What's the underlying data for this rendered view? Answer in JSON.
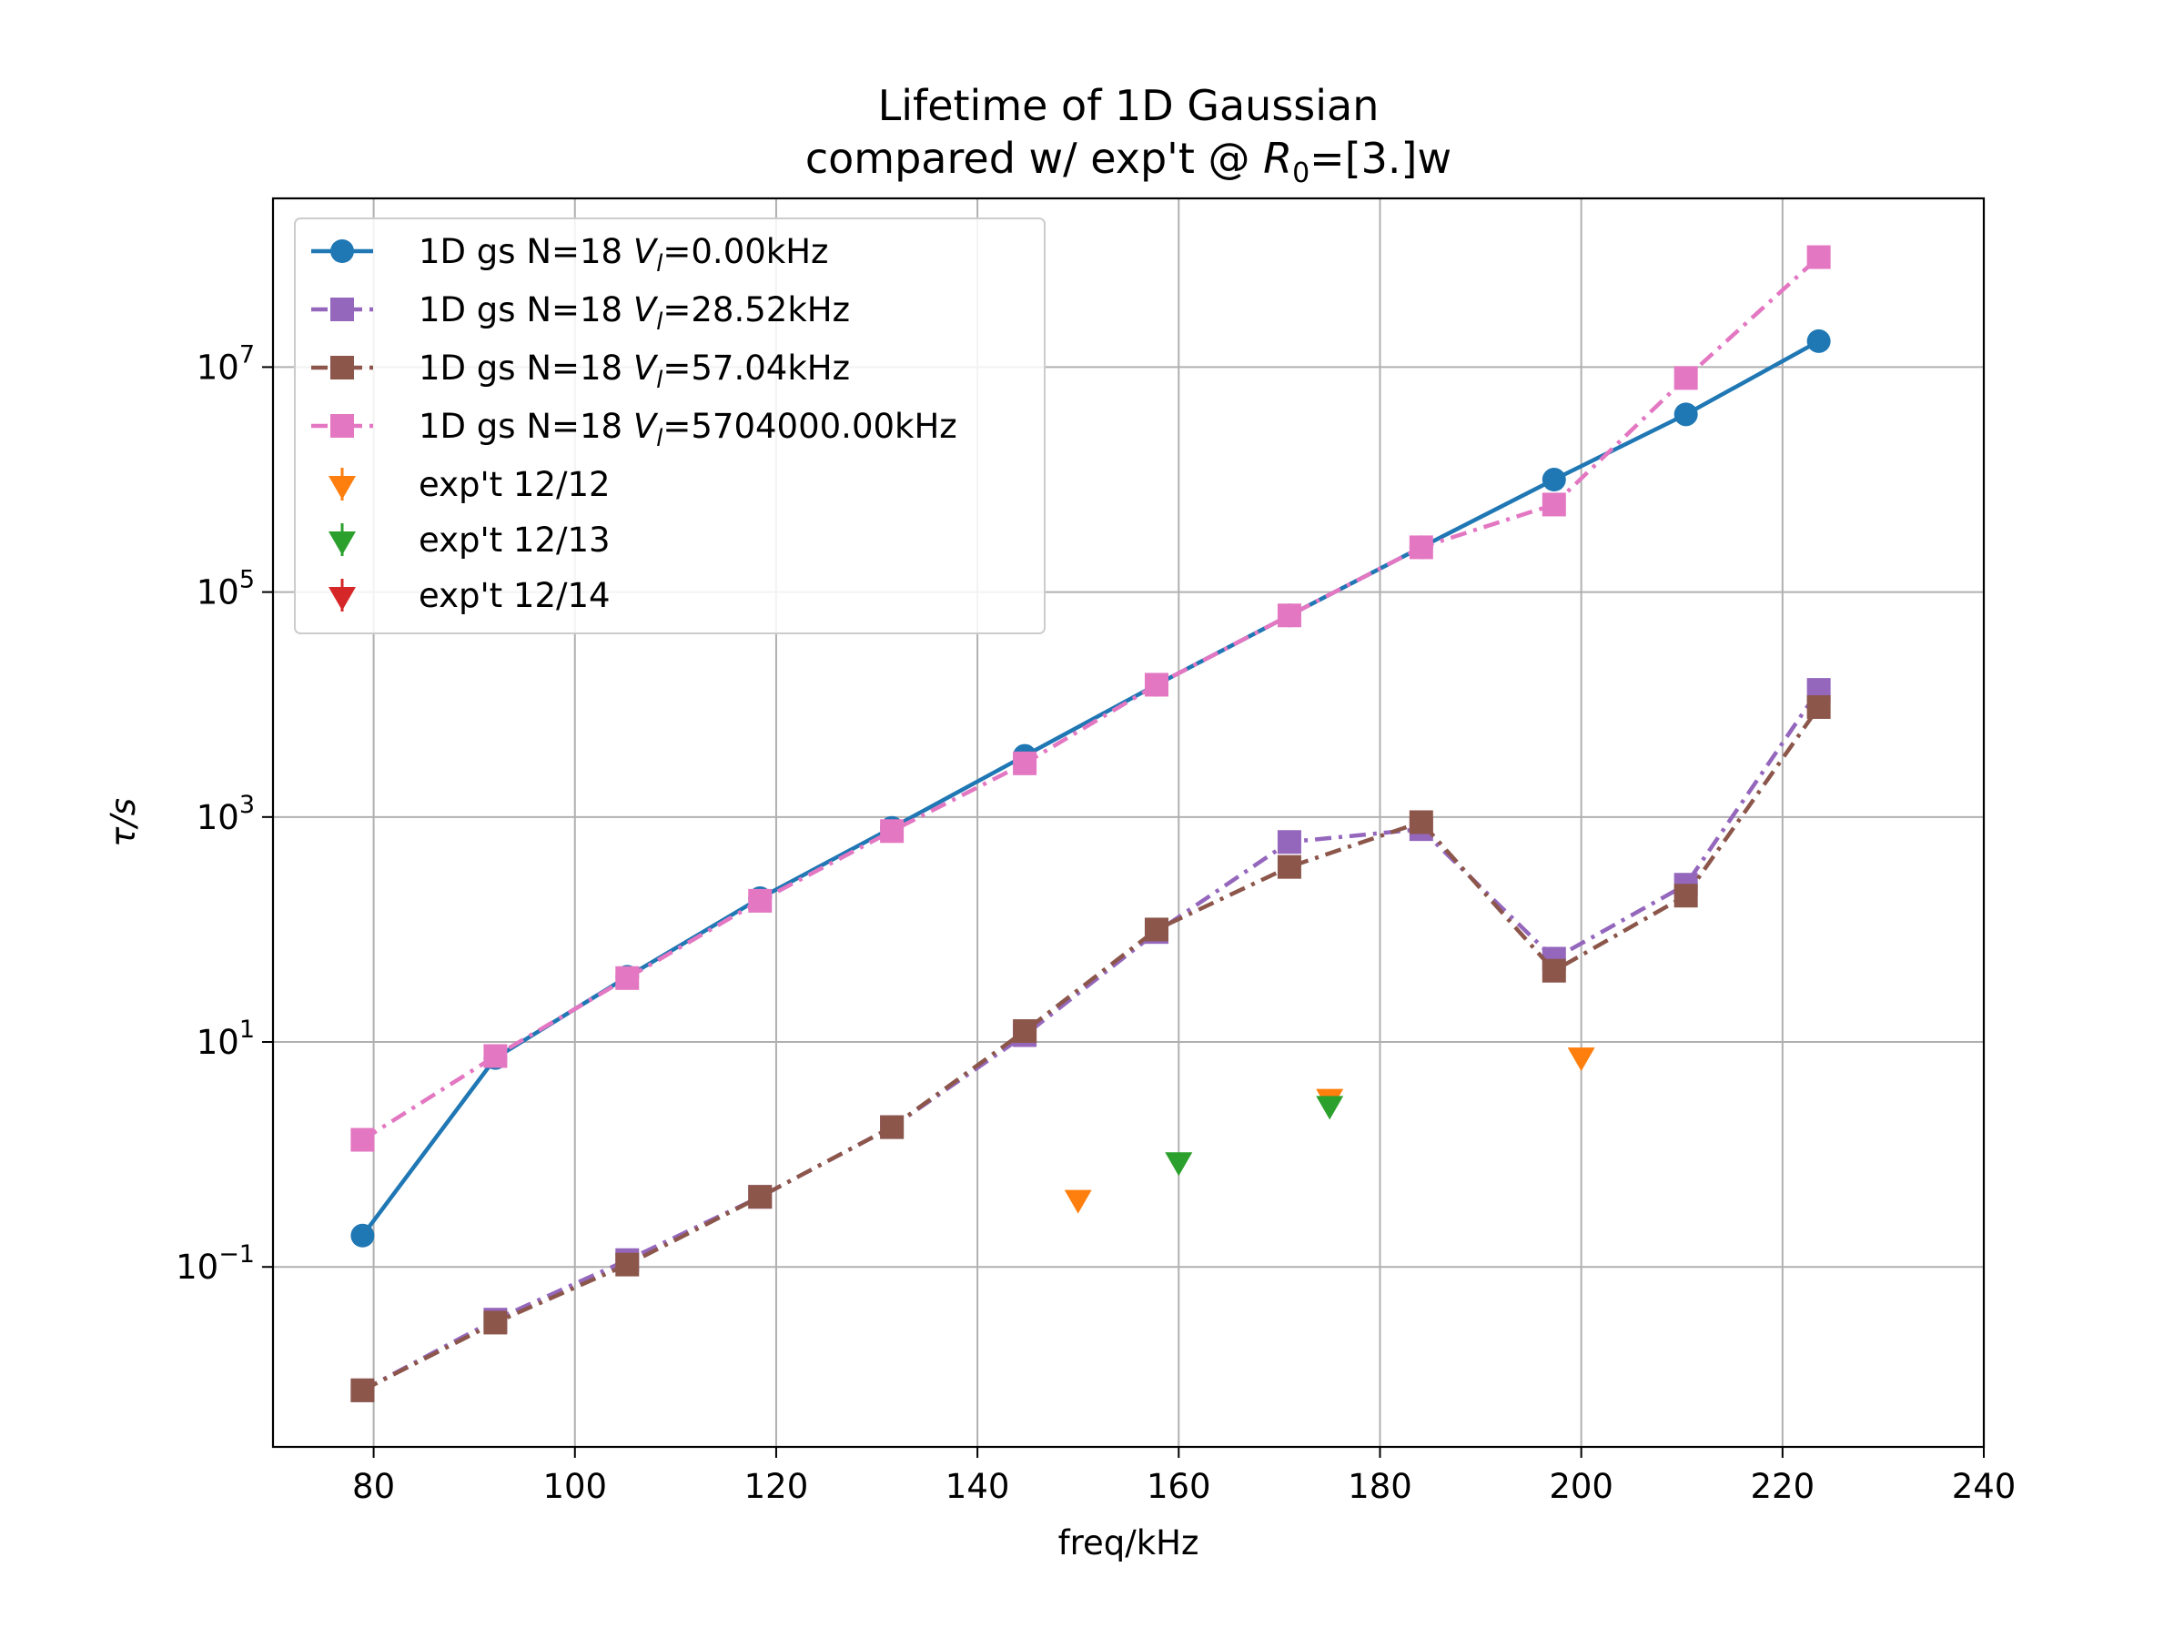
{
  "chart_data": {
    "type": "line",
    "title_line1": "Lifetime of 1D Gaussian",
    "title_line2": "compared w/ exp't @ ",
    "title_sym": "R",
    "title_sub": "0",
    "title_tail": "=[3.]w",
    "xlabel": "freq/kHz",
    "ylabel": "τ/s",
    "xlim": [
      70,
      240
    ],
    "ylim_log10": [
      -2.6,
      8.5
    ],
    "yscale": "log",
    "grid": true,
    "legend_placement": "upper-left",
    "x_ticks": [
      "80",
      "100",
      "120",
      "140",
      "160",
      "180",
      "200",
      "220",
      "240"
    ],
    "x_tick_values": [
      80,
      100,
      120,
      140,
      160,
      180,
      200,
      220,
      240
    ],
    "y_ticks": [
      {
        "base": "10",
        "exp": "−1",
        "exp10": -1
      },
      {
        "base": "10",
        "exp": "1",
        "exp10": 1
      },
      {
        "base": "10",
        "exp": "3",
        "exp10": 3
      },
      {
        "base": "10",
        "exp": "5",
        "exp10": 5
      },
      {
        "base": "10",
        "exp": "7",
        "exp10": 7
      }
    ],
    "x": [
      78.9,
      92.1,
      105.2,
      118.4,
      131.5,
      144.7,
      157.8,
      171.0,
      184.1,
      197.3,
      210.4,
      223.6
    ],
    "series": [
      {
        "name_prefix": "1D gs N=18 ",
        "name_sym": "V",
        "name_sub": "l",
        "name_suffix": "=0.00kHz",
        "color": "#1f77b4",
        "marker": "circle",
        "linestyle": "solid",
        "values": [
          0.19,
          7.2,
          38,
          190,
          800,
          3500,
          15000,
          62000,
          250000,
          1000000,
          3800000,
          17000000
        ]
      },
      {
        "name_prefix": "1D gs N=18 ",
        "name_sym": "V",
        "name_sub": "l",
        "name_suffix": "=28.52kHz",
        "color": "#9467bd",
        "marker": "square",
        "linestyle": "dashdot",
        "values": [
          0.008,
          0.034,
          0.115,
          0.42,
          1.75,
          11.5,
          95,
          600,
          780,
          55,
          250,
          13500
        ]
      },
      {
        "name_prefix": "1D gs N=18 ",
        "name_sym": "V",
        "name_sub": "l",
        "name_suffix": "=57.04kHz",
        "color": "#8c564b",
        "marker": "square",
        "linestyle": "dashdot",
        "values": [
          0.008,
          0.032,
          0.105,
          0.42,
          1.75,
          12.5,
          100,
          360,
          900,
          43,
          200,
          9500
        ]
      },
      {
        "name_prefix": "1D gs N=18 ",
        "name_sym": "V",
        "name_sub": "l",
        "name_suffix": "=5704000.00kHz",
        "color": "#e377c2",
        "marker": "square",
        "linestyle": "dashdot",
        "values": [
          1.35,
          7.5,
          37,
          180,
          750,
          3000,
          15000,
          62000,
          250000,
          600000,
          8000000,
          95000000
        ]
      }
    ],
    "experiments": [
      {
        "name": "exp't 12/12",
        "color": "#ff7f0e",
        "points": [
          {
            "x": 150,
            "y": 0.38
          },
          {
            "x": 175,
            "y": 3.0
          },
          {
            "x": 200,
            "y": 7.0
          }
        ]
      },
      {
        "name": "exp't 12/13",
        "color": "#2ca02c",
        "points": [
          {
            "x": 160,
            "y": 0.82
          },
          {
            "x": 175,
            "y": 2.6
          }
        ]
      },
      {
        "name": "exp't 12/14",
        "color": "#d62728",
        "points": []
      }
    ]
  }
}
